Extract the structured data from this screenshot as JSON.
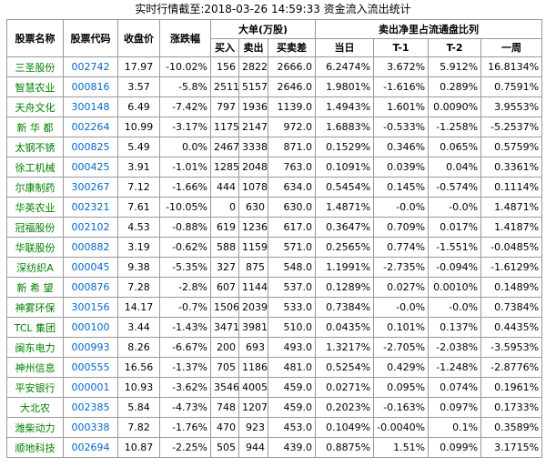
{
  "title": "实时行情截至:2018-03-26 14:59:33 资金流入流出统计",
  "table": {
    "head": [
      "股票名称",
      "股票代码",
      "收盘价",
      "涨跌幅"
    ],
    "group_a": {
      "label": "大单(万股)",
      "columns": [
        "买入",
        "卖出",
        "买卖差"
      ]
    },
    "group_b": {
      "label": "卖出净里占流通盘比列",
      "columns": [
        "当日",
        "T-1",
        "T-2",
        "一周"
      ]
    },
    "rows": [
      [
        "三圣股份",
        "002742",
        "17.97",
        "-10.02%",
        "156",
        "2822",
        "2666.0",
        "6.2474%",
        "3.672%",
        "5.912%",
        "16.8134%"
      ],
      [
        "智慧农业",
        "000816",
        "3.57",
        "-5.8%",
        "2511",
        "5157",
        "2646.0",
        "1.9801%",
        "-1.616%",
        "0.289%",
        "0.7591%"
      ],
      [
        "天舟文化",
        "300148",
        "6.49",
        "-7.42%",
        "797",
        "1936",
        "1139.0",
        "1.4943%",
        "1.601%",
        "0.0090%",
        "3.9553%"
      ],
      [
        "新 华 都",
        "002264",
        "10.99",
        "-3.17%",
        "1175",
        "2147",
        "972.0",
        "1.6883%",
        "-0.533%",
        "-1.258%",
        "-5.2537%"
      ],
      [
        "太钢不锈",
        "000825",
        "5.49",
        "0.0%",
        "2467",
        "3338",
        "871.0",
        "0.1529%",
        "0.346%",
        "0.065%",
        "0.5759%"
      ],
      [
        "徐工机械",
        "000425",
        "3.91",
        "-1.01%",
        "1285",
        "2048",
        "763.0",
        "0.1091%",
        "0.039%",
        "0.04%",
        "0.3361%"
      ],
      [
        "尔康制药",
        "300267",
        "7.12",
        "-1.66%",
        "444",
        "1078",
        "634.0",
        "0.5454%",
        "0.145%",
        "-0.574%",
        "0.1114%"
      ],
      [
        "华英农业",
        "002321",
        "7.61",
        "-10.05%",
        "0",
        "630",
        "630.0",
        "1.4871%",
        "-0.0%",
        "-0.0%",
        "1.4871%"
      ],
      [
        "冠福股份",
        "002102",
        "4.53",
        "-0.88%",
        "619",
        "1236",
        "617.0",
        "0.3647%",
        "0.709%",
        "0.017%",
        "1.4187%"
      ],
      [
        "华联股份",
        "000882",
        "3.19",
        "-0.62%",
        "588",
        "1159",
        "571.0",
        "0.2565%",
        "0.774%",
        "-1.551%",
        "-0.0485%"
      ],
      [
        "深纺织A",
        "000045",
        "9.38",
        "-5.35%",
        "327",
        "875",
        "548.0",
        "1.1991%",
        "-2.735%",
        "-0.094%",
        "-1.6129%"
      ],
      [
        "新 希 望",
        "000876",
        "7.28",
        "-2.8%",
        "607",
        "1144",
        "537.0",
        "0.1289%",
        "0.027%",
        "0.0010%",
        "0.1489%"
      ],
      [
        "神雾环保",
        "300156",
        "14.17",
        "-0.7%",
        "1506",
        "2039",
        "533.0",
        "0.7384%",
        "-0.0%",
        "-0.0%",
        "0.7384%"
      ],
      [
        "TCL 集团",
        "000100",
        "3.44",
        "-1.43%",
        "3471",
        "3981",
        "510.0",
        "0.0435%",
        "0.101%",
        "0.137%",
        "0.4435%"
      ],
      [
        "闽东电力",
        "000993",
        "8.26",
        "-6.67%",
        "200",
        "693",
        "493.0",
        "1.3217%",
        "-2.705%",
        "-2.038%",
        "-3.5953%"
      ],
      [
        "神州信息",
        "000555",
        "16.56",
        "-1.37%",
        "705",
        "1186",
        "481.0",
        "0.5254%",
        "0.429%",
        "-1.248%",
        "-2.8776%"
      ],
      [
        "平安银行",
        "000001",
        "10.93",
        "-3.62%",
        "3546",
        "4005",
        "459.0",
        "0.0271%",
        "0.095%",
        "0.074%",
        "0.1961%"
      ],
      [
        "大北农",
        "002385",
        "5.84",
        "-4.73%",
        "748",
        "1207",
        "459.0",
        "0.2023%",
        "-0.163%",
        "0.097%",
        "0.1733%"
      ],
      [
        "潍柴动力",
        "000338",
        "7.82",
        "-1.76%",
        "470",
        "923",
        "453.0",
        "0.1049%",
        "-0.0040%",
        "0.1%",
        "0.3589%"
      ],
      [
        "顺地科技",
        "002694",
        "10.87",
        "-2.25%",
        "505",
        "944",
        "439.0",
        "0.8875%",
        "1.51%",
        "0.099%",
        "3.1715%"
      ]
    ]
  }
}
